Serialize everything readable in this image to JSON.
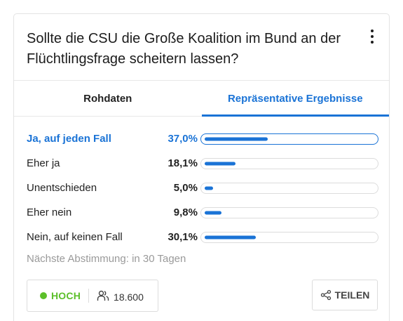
{
  "poll": {
    "question": "Sollte die CSU die Große Koalition im Bund an der Flüchtlingsfrage scheitern lassen?",
    "menu_icon": "more-vertical-icon"
  },
  "tabs": [
    {
      "label": "Rohdaten",
      "active": false
    },
    {
      "label": "Repräsentative Ergebnisse",
      "active": true
    }
  ],
  "results": [
    {
      "label": "Ja, auf jeden Fall",
      "pct_text": "37,0%",
      "value": 37.0,
      "selected": true
    },
    {
      "label": "Eher ja",
      "pct_text": "18,1%",
      "value": 18.1,
      "selected": false
    },
    {
      "label": "Unentschieden",
      "pct_text": "5,0%",
      "value": 5.0,
      "selected": false
    },
    {
      "label": "Eher nein",
      "pct_text": "9,8%",
      "value": 9.8,
      "selected": false
    },
    {
      "label": "Nein, auf keinen Fall",
      "pct_text": "30,1%",
      "value": 30.1,
      "selected": false
    }
  ],
  "footer": {
    "next_vote": "Nächste Abstimmung: in 30 Tagen",
    "level": "HOCH",
    "participants": "18.600",
    "share_label": "TEILEN"
  },
  "colors": {
    "accent": "#1a73d6",
    "level": "#5cbf2a"
  }
}
